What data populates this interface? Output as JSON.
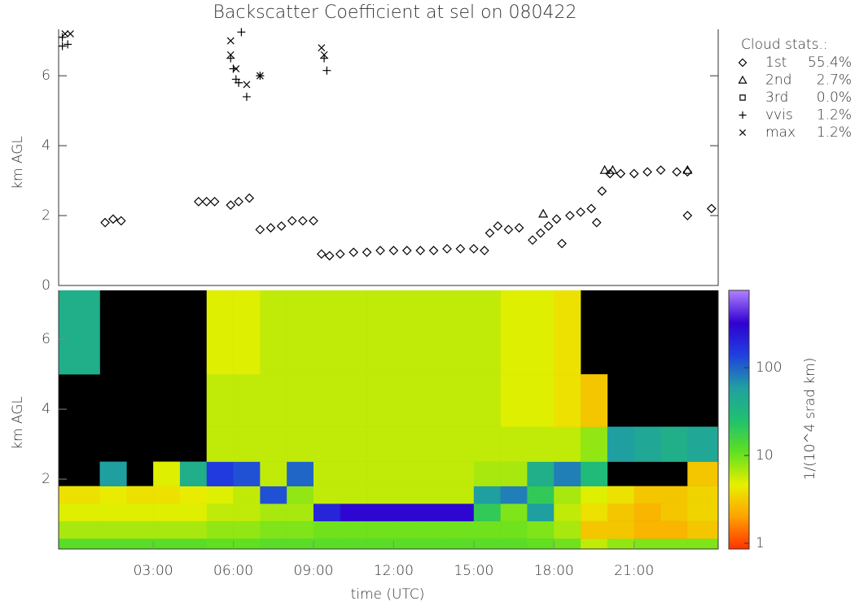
{
  "chart_data": [
    {
      "type": "scatter",
      "title": "Backscatter Coefficient at sel on 080422",
      "ylabel": "km AGL",
      "xlim": [
        -0.54,
        24.15
      ],
      "ylim": [
        0,
        7.33
      ],
      "yticks": [
        0,
        2,
        4,
        6
      ],
      "legend_title": "Cloud stats.:",
      "series": [
        {
          "name": "1st",
          "marker": "diamond",
          "color": "#000000",
          "stat": {
            "value": 55.4,
            "label": "55.4%"
          },
          "x": [
            1.2,
            1.5,
            1.8,
            4.7,
            5.0,
            5.3,
            5.9,
            6.2,
            6.6,
            7.0,
            7.4,
            7.8,
            8.2,
            8.6,
            9.0,
            9.3,
            9.6,
            10,
            10.5,
            11,
            11.5,
            12,
            12.5,
            13,
            13.5,
            14,
            14.5,
            15,
            15.4,
            15.6,
            15.9,
            16.3,
            16.7,
            17.2,
            17.5,
            17.8,
            18.1,
            18.3,
            18.6,
            19.0,
            19.4,
            19.6,
            19.8,
            20.1,
            20.5,
            21,
            21.5,
            22,
            22.6,
            23,
            23,
            23.9
          ],
          "values": [
            1.8,
            1.9,
            1.85,
            2.4,
            2.4,
            2.4,
            2.3,
            2.4,
            2.5,
            1.6,
            1.65,
            1.7,
            1.85,
            1.85,
            1.85,
            0.9,
            0.85,
            0.9,
            0.95,
            0.95,
            1.0,
            1.0,
            1.0,
            1.0,
            1.0,
            1.05,
            1.05,
            1.05,
            1.0,
            1.5,
            1.7,
            1.6,
            1.65,
            1.3,
            1.5,
            1.7,
            1.9,
            1.2,
            2.0,
            2.1,
            2.2,
            1.8,
            2.7,
            3.2,
            3.2,
            3.2,
            3.25,
            3.3,
            3.25,
            2.0,
            3.25,
            2.2
          ]
        },
        {
          "name": "2nd",
          "marker": "triangle",
          "color": "#000000",
          "stat": {
            "value": 2.7,
            "label": "2.7%"
          },
          "x": [
            17.6,
            19.9,
            20.2,
            23.0
          ],
          "values": [
            2.05,
            3.3,
            3.3,
            3.3
          ]
        },
        {
          "name": "3rd",
          "marker": "square",
          "color": "#000000",
          "stat": {
            "value": 0.0,
            "label": "0.0%"
          },
          "x": [],
          "values": []
        },
        {
          "name": "vvis",
          "marker": "plus",
          "color": "#000000",
          "stat": {
            "value": 1.2,
            "label": "1.2%"
          },
          "x": [
            -0.4,
            -0.2,
            -0.4,
            5.9,
            6.0,
            6.1,
            6.2,
            6.3,
            6.5,
            9.4,
            9.5,
            7.0
          ],
          "values": [
            7.1,
            6.9,
            6.85,
            6.5,
            6.2,
            5.9,
            5.8,
            7.25,
            5.4,
            6.5,
            6.15,
            6.0
          ]
        },
        {
          "name": "max",
          "marker": "cross",
          "color": "#000000",
          "stat": {
            "value": 1.2,
            "label": "1.2%"
          },
          "x": [
            -0.3,
            -0.1,
            5.9,
            5.9,
            6.1,
            6.5,
            7.0,
            9.3,
            9.4
          ],
          "values": [
            7.2,
            7.2,
            7.0,
            6.6,
            6.2,
            5.75,
            6.0,
            6.8,
            6.6
          ]
        }
      ]
    },
    {
      "type": "heatmap",
      "xlabel": "time (UTC)",
      "ylabel": "km AGL",
      "xlim": [
        -0.54,
        24.15
      ],
      "ylim": [
        0,
        7.4
      ],
      "xticks": [
        {
          "value": 3,
          "label": "03:00"
        },
        {
          "value": 6,
          "label": "06:00"
        },
        {
          "value": 9,
          "label": "09:00"
        },
        {
          "value": 12,
          "label": "12:00"
        },
        {
          "value": 15,
          "label": "15:00"
        },
        {
          "value": 18,
          "label": "18:00"
        },
        {
          "value": 21,
          "label": "21:00"
        }
      ],
      "yticks": [
        2,
        4,
        6
      ],
      "x_edges": [
        -0.54,
        1,
        2,
        3,
        4,
        5,
        6,
        7,
        8,
        9,
        10,
        11,
        12,
        13,
        14,
        15,
        16,
        17,
        18,
        19,
        20,
        21,
        22,
        23,
        24.15
      ],
      "y_edges": [
        0,
        0.3,
        0.8,
        1.3,
        1.8,
        2.5,
        3.5,
        5,
        7.4
      ],
      "z": [
        [
          12,
          12,
          12,
          12,
          12,
          11,
          11,
          12,
          12,
          12,
          12,
          12,
          12,
          12,
          12,
          12,
          12,
          11,
          10,
          6,
          8,
          9,
          9,
          9
        ],
        [
          7,
          7,
          7,
          7,
          7,
          8,
          8,
          9,
          9,
          10,
          10,
          10,
          10,
          10,
          10,
          10,
          10,
          9,
          7,
          3,
          3,
          2.5,
          2.5,
          3
        ],
        [
          5,
          5,
          5,
          5,
          5,
          6,
          6,
          7,
          7,
          200,
          300,
          300,
          300,
          300,
          300,
          20,
          9,
          60,
          6,
          4,
          3,
          2.5,
          3,
          3.5
        ],
        [
          4,
          4.5,
          4,
          4,
          4.5,
          5,
          6,
          120,
          8,
          6,
          6,
          6,
          6,
          6,
          6,
          60,
          80,
          20,
          7,
          5,
          4,
          3,
          3,
          3.5
        ],
        [
          null,
          60,
          null,
          5,
          40,
          150,
          120,
          6,
          100,
          6,
          6,
          6,
          6,
          6,
          6,
          7,
          7,
          40,
          80,
          30,
          null,
          null,
          null,
          3
        ],
        [
          null,
          null,
          null,
          null,
          null,
          6,
          6,
          6,
          6,
          6,
          6,
          6,
          6,
          6,
          6,
          6,
          6,
          6,
          6,
          8,
          60,
          50,
          40,
          50
        ],
        [
          null,
          null,
          null,
          null,
          null,
          6,
          6,
          6,
          6,
          6,
          6,
          6,
          6,
          6,
          6,
          6,
          5,
          5,
          4,
          3,
          null,
          null,
          null,
          null
        ],
        [
          40,
          null,
          null,
          null,
          null,
          5,
          5,
          6,
          6,
          6,
          6,
          6,
          6,
          6,
          6,
          6,
          5,
          5,
          4,
          null,
          null,
          null,
          null,
          null
        ]
      ],
      "zlim": [
        0.86,
        760
      ],
      "zscale": "log",
      "zticks": [
        1,
        10,
        100
      ],
      "zlabel": "1/(10^4 srad km)",
      "colormap": [
        "#ff3000",
        "#ffa000",
        "#e8f000",
        "#60e020",
        "#20c070",
        "#20a0a0",
        "#2040e0",
        "#3000d0",
        "#b080ff"
      ],
      "background": "#000000"
    }
  ]
}
